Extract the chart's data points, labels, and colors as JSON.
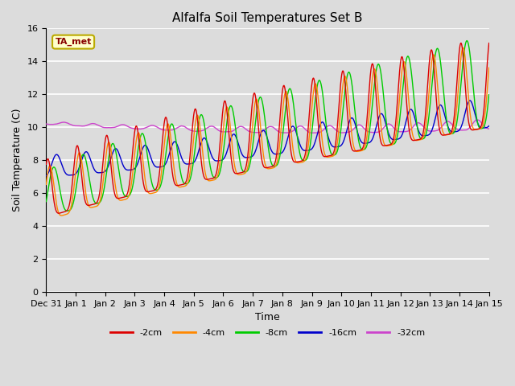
{
  "title": "Alfalfa Soil Temperatures Set B",
  "xlabel": "Time",
  "ylabel": "Soil Temperature (C)",
  "ylim": [
    0,
    16
  ],
  "background_color": "#dcdcdc",
  "plot_bg_color": "#dcdcdc",
  "grid_color": "white",
  "annotation_text": "TA_met",
  "annotation_bg": "#ffffcc",
  "annotation_border": "#bbaa00",
  "annotation_text_color": "#880000",
  "legend_entries": [
    "-2cm",
    "-4cm",
    "-8cm",
    "-16cm",
    "-32cm"
  ],
  "line_colors": [
    "#dd0000",
    "#ff8800",
    "#00cc00",
    "#0000cc",
    "#cc44cc"
  ],
  "x_tick_labels": [
    "Dec 31",
    "Jan 1",
    "Jan 2",
    "Jan 3",
    "Jan 4",
    "Jan 5",
    "Jan 6",
    "Jan 7",
    "Jan 8",
    "Jan 9",
    "Jan 10",
    "Jan 11",
    "Jan 12",
    "Jan 13",
    "Jan 14",
    "Jan 15"
  ],
  "n_points": 4000
}
